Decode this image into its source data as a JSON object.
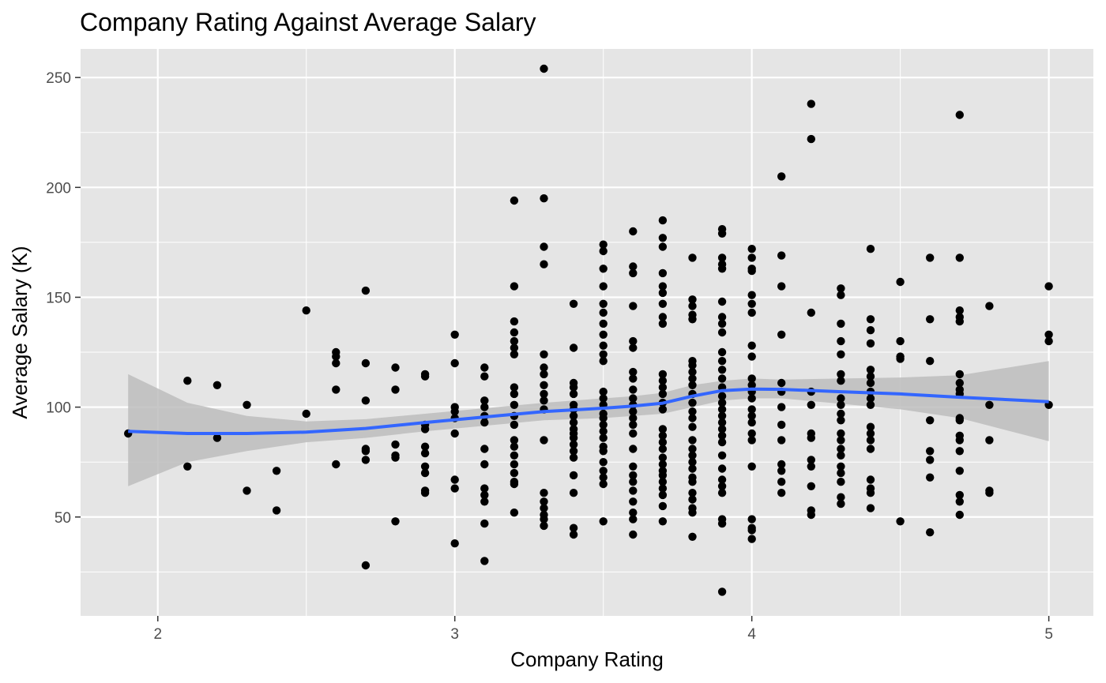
{
  "chart_data": {
    "type": "scatter",
    "title": "Company Rating Against Average Salary",
    "xlabel": "Company Rating",
    "ylabel": "Average Salary (K)",
    "xlim": [
      1.74,
      5.15
    ],
    "ylim": [
      5,
      263
    ],
    "x_ticks": [
      2,
      3,
      4,
      5
    ],
    "y_ticks": [
      50,
      100,
      150,
      200,
      250
    ],
    "grid": true,
    "legend": "none",
    "colors": {
      "panel": "#e5e5e5",
      "grid": "#ffffff",
      "points": "#000000",
      "smooth_line": "#3366ff",
      "confidence_band": "#bdbdbd",
      "tick_text": "#4d4d4d"
    },
    "points": [
      [
        1.9,
        88
      ],
      [
        2.1,
        112
      ],
      [
        2.1,
        73
      ],
      [
        2.2,
        110
      ],
      [
        2.2,
        86
      ],
      [
        2.3,
        101
      ],
      [
        2.3,
        62
      ],
      [
        2.4,
        71
      ],
      [
        2.4,
        53
      ],
      [
        2.5,
        144
      ],
      [
        2.5,
        97
      ],
      [
        2.6,
        125
      ],
      [
        2.6,
        123
      ],
      [
        2.6,
        120
      ],
      [
        2.6,
        108
      ],
      [
        2.6,
        74
      ],
      [
        2.7,
        153
      ],
      [
        2.7,
        120
      ],
      [
        2.7,
        103
      ],
      [
        2.7,
        81
      ],
      [
        2.7,
        80
      ],
      [
        2.7,
        76
      ],
      [
        2.7,
        28
      ],
      [
        2.8,
        118
      ],
      [
        2.8,
        108
      ],
      [
        2.8,
        83
      ],
      [
        2.8,
        78
      ],
      [
        2.8,
        77
      ],
      [
        2.8,
        48
      ],
      [
        2.9,
        115
      ],
      [
        2.9,
        114
      ],
      [
        2.9,
        92
      ],
      [
        2.9,
        90
      ],
      [
        2.9,
        82
      ],
      [
        2.9,
        79
      ],
      [
        2.9,
        73
      ],
      [
        2.9,
        70
      ],
      [
        2.9,
        62
      ],
      [
        2.9,
        61
      ],
      [
        3.0,
        133
      ],
      [
        3.0,
        120
      ],
      [
        3.0,
        100
      ],
      [
        3.0,
        98
      ],
      [
        3.0,
        95
      ],
      [
        3.0,
        88
      ],
      [
        3.0,
        67
      ],
      [
        3.0,
        63
      ],
      [
        3.0,
        38
      ],
      [
        3.1,
        118
      ],
      [
        3.1,
        114
      ],
      [
        3.1,
        103
      ],
      [
        3.1,
        100
      ],
      [
        3.1,
        96
      ],
      [
        3.1,
        93
      ],
      [
        3.1,
        81
      ],
      [
        3.1,
        74
      ],
      [
        3.1,
        63
      ],
      [
        3.1,
        60
      ],
      [
        3.1,
        57
      ],
      [
        3.1,
        47
      ],
      [
        3.1,
        30
      ],
      [
        3.2,
        194
      ],
      [
        3.2,
        155
      ],
      [
        3.2,
        139
      ],
      [
        3.2,
        134
      ],
      [
        3.2,
        130
      ],
      [
        3.2,
        127
      ],
      [
        3.2,
        124
      ],
      [
        3.2,
        109
      ],
      [
        3.2,
        106
      ],
      [
        3.2,
        101
      ],
      [
        3.2,
        96
      ],
      [
        3.2,
        92
      ],
      [
        3.2,
        85
      ],
      [
        3.2,
        82
      ],
      [
        3.2,
        78
      ],
      [
        3.2,
        74
      ],
      [
        3.2,
        70
      ],
      [
        3.2,
        66
      ],
      [
        3.2,
        65
      ],
      [
        3.2,
        52
      ],
      [
        3.3,
        254
      ],
      [
        3.3,
        195
      ],
      [
        3.3,
        173
      ],
      [
        3.3,
        165
      ],
      [
        3.3,
        124
      ],
      [
        3.3,
        118
      ],
      [
        3.3,
        115
      ],
      [
        3.3,
        110
      ],
      [
        3.3,
        106
      ],
      [
        3.3,
        103
      ],
      [
        3.3,
        99
      ],
      [
        3.3,
        85
      ],
      [
        3.3,
        61
      ],
      [
        3.3,
        57
      ],
      [
        3.3,
        54
      ],
      [
        3.3,
        51
      ],
      [
        3.3,
        49
      ],
      [
        3.3,
        46
      ],
      [
        3.4,
        147
      ],
      [
        3.4,
        127
      ],
      [
        3.4,
        111
      ],
      [
        3.4,
        109
      ],
      [
        3.4,
        106
      ],
      [
        3.4,
        101
      ],
      [
        3.4,
        99
      ],
      [
        3.4,
        96
      ],
      [
        3.4,
        93
      ],
      [
        3.4,
        90
      ],
      [
        3.4,
        88
      ],
      [
        3.4,
        86
      ],
      [
        3.4,
        83
      ],
      [
        3.4,
        80
      ],
      [
        3.4,
        77
      ],
      [
        3.4,
        69
      ],
      [
        3.4,
        61
      ],
      [
        3.4,
        45
      ],
      [
        3.4,
        42
      ],
      [
        3.5,
        174
      ],
      [
        3.5,
        171
      ],
      [
        3.5,
        163
      ],
      [
        3.5,
        155
      ],
      [
        3.5,
        147
      ],
      [
        3.5,
        143
      ],
      [
        3.5,
        138
      ],
      [
        3.5,
        133
      ],
      [
        3.5,
        128
      ],
      [
        3.5,
        124
      ],
      [
        3.5,
        121
      ],
      [
        3.5,
        107
      ],
      [
        3.5,
        104
      ],
      [
        3.5,
        101
      ],
      [
        3.5,
        97
      ],
      [
        3.5,
        95
      ],
      [
        3.5,
        92
      ],
      [
        3.5,
        89
      ],
      [
        3.5,
        86
      ],
      [
        3.5,
        82
      ],
      [
        3.5,
        80
      ],
      [
        3.5,
        75
      ],
      [
        3.5,
        71
      ],
      [
        3.5,
        68
      ],
      [
        3.5,
        65
      ],
      [
        3.5,
        48
      ],
      [
        3.6,
        180
      ],
      [
        3.6,
        164
      ],
      [
        3.6,
        161
      ],
      [
        3.6,
        146
      ],
      [
        3.6,
        130
      ],
      [
        3.6,
        127
      ],
      [
        3.6,
        116
      ],
      [
        3.6,
        113
      ],
      [
        3.6,
        108
      ],
      [
        3.6,
        104
      ],
      [
        3.6,
        101
      ],
      [
        3.6,
        98
      ],
      [
        3.6,
        95
      ],
      [
        3.6,
        92
      ],
      [
        3.6,
        88
      ],
      [
        3.6,
        81
      ],
      [
        3.6,
        73
      ],
      [
        3.6,
        69
      ],
      [
        3.6,
        66
      ],
      [
        3.6,
        62
      ],
      [
        3.6,
        57
      ],
      [
        3.6,
        52
      ],
      [
        3.6,
        49
      ],
      [
        3.6,
        42
      ],
      [
        3.7,
        185
      ],
      [
        3.7,
        177
      ],
      [
        3.7,
        173
      ],
      [
        3.7,
        161
      ],
      [
        3.7,
        155
      ],
      [
        3.7,
        152
      ],
      [
        3.7,
        147
      ],
      [
        3.7,
        141
      ],
      [
        3.7,
        138
      ],
      [
        3.7,
        115
      ],
      [
        3.7,
        112
      ],
      [
        3.7,
        109
      ],
      [
        3.7,
        106
      ],
      [
        3.7,
        102
      ],
      [
        3.7,
        99
      ],
      [
        3.7,
        90
      ],
      [
        3.7,
        87
      ],
      [
        3.7,
        84
      ],
      [
        3.7,
        81
      ],
      [
        3.7,
        77
      ],
      [
        3.7,
        74
      ],
      [
        3.7,
        71
      ],
      [
        3.7,
        69
      ],
      [
        3.7,
        66
      ],
      [
        3.7,
        63
      ],
      [
        3.7,
        60
      ],
      [
        3.7,
        55
      ],
      [
        3.7,
        48
      ],
      [
        3.8,
        168
      ],
      [
        3.8,
        149
      ],
      [
        3.8,
        146
      ],
      [
        3.8,
        142
      ],
      [
        3.8,
        140
      ],
      [
        3.8,
        121
      ],
      [
        3.8,
        119
      ],
      [
        3.8,
        116
      ],
      [
        3.8,
        113
      ],
      [
        3.8,
        110
      ],
      [
        3.8,
        106
      ],
      [
        3.8,
        102
      ],
      [
        3.8,
        98
      ],
      [
        3.8,
        95
      ],
      [
        3.8,
        91
      ],
      [
        3.8,
        85
      ],
      [
        3.8,
        81
      ],
      [
        3.8,
        78
      ],
      [
        3.8,
        75
      ],
      [
        3.8,
        72
      ],
      [
        3.8,
        68
      ],
      [
        3.8,
        66
      ],
      [
        3.8,
        61
      ],
      [
        3.8,
        58
      ],
      [
        3.8,
        54
      ],
      [
        3.8,
        52
      ],
      [
        3.8,
        41
      ],
      [
        3.9,
        181
      ],
      [
        3.9,
        179
      ],
      [
        3.9,
        168
      ],
      [
        3.9,
        165
      ],
      [
        3.9,
        163
      ],
      [
        3.9,
        148
      ],
      [
        3.9,
        141
      ],
      [
        3.9,
        138
      ],
      [
        3.9,
        134
      ],
      [
        3.9,
        125
      ],
      [
        3.9,
        121
      ],
      [
        3.9,
        117
      ],
      [
        3.9,
        113
      ],
      [
        3.9,
        109
      ],
      [
        3.9,
        105
      ],
      [
        3.9,
        102
      ],
      [
        3.9,
        99
      ],
      [
        3.9,
        96
      ],
      [
        3.9,
        93
      ],
      [
        3.9,
        90
      ],
      [
        3.9,
        87
      ],
      [
        3.9,
        84
      ],
      [
        3.9,
        78
      ],
      [
        3.9,
        72
      ],
      [
        3.9,
        67
      ],
      [
        3.9,
        64
      ],
      [
        3.9,
        61
      ],
      [
        3.9,
        49
      ],
      [
        3.9,
        47
      ],
      [
        3.9,
        16
      ],
      [
        4.0,
        172
      ],
      [
        4.0,
        168
      ],
      [
        4.0,
        163
      ],
      [
        4.0,
        162
      ],
      [
        4.0,
        151
      ],
      [
        4.0,
        147
      ],
      [
        4.0,
        143
      ],
      [
        4.0,
        128
      ],
      [
        4.0,
        123
      ],
      [
        4.0,
        113
      ],
      [
        4.0,
        110
      ],
      [
        4.0,
        107
      ],
      [
        4.0,
        104
      ],
      [
        4.0,
        99
      ],
      [
        4.0,
        96
      ],
      [
        4.0,
        93
      ],
      [
        4.0,
        88
      ],
      [
        4.0,
        85
      ],
      [
        4.0,
        73
      ],
      [
        4.0,
        49
      ],
      [
        4.0,
        45
      ],
      [
        4.0,
        44
      ],
      [
        4.0,
        40
      ],
      [
        4.1,
        205
      ],
      [
        4.1,
        169
      ],
      [
        4.1,
        155
      ],
      [
        4.1,
        133
      ],
      [
        4.1,
        111
      ],
      [
        4.1,
        107
      ],
      [
        4.1,
        100
      ],
      [
        4.1,
        92
      ],
      [
        4.1,
        85
      ],
      [
        4.1,
        74
      ],
      [
        4.1,
        71
      ],
      [
        4.1,
        66
      ],
      [
        4.1,
        61
      ],
      [
        4.2,
        238
      ],
      [
        4.2,
        222
      ],
      [
        4.2,
        143
      ],
      [
        4.2,
        107
      ],
      [
        4.2,
        101
      ],
      [
        4.2,
        88
      ],
      [
        4.2,
        86
      ],
      [
        4.2,
        76
      ],
      [
        4.2,
        73
      ],
      [
        4.2,
        64
      ],
      [
        4.2,
        53
      ],
      [
        4.2,
        51
      ],
      [
        4.3,
        154
      ],
      [
        4.3,
        151
      ],
      [
        4.3,
        138
      ],
      [
        4.3,
        130
      ],
      [
        4.3,
        124
      ],
      [
        4.3,
        115
      ],
      [
        4.3,
        112
      ],
      [
        4.3,
        104
      ],
      [
        4.3,
        101
      ],
      [
        4.3,
        97
      ],
      [
        4.3,
        94
      ],
      [
        4.3,
        88
      ],
      [
        4.3,
        85
      ],
      [
        4.3,
        81
      ],
      [
        4.3,
        78
      ],
      [
        4.3,
        73
      ],
      [
        4.3,
        70
      ],
      [
        4.3,
        66
      ],
      [
        4.3,
        59
      ],
      [
        4.3,
        56
      ],
      [
        4.4,
        172
      ],
      [
        4.4,
        140
      ],
      [
        4.4,
        135
      ],
      [
        4.4,
        129
      ],
      [
        4.4,
        117
      ],
      [
        4.4,
        114
      ],
      [
        4.4,
        111
      ],
      [
        4.4,
        107
      ],
      [
        4.4,
        104
      ],
      [
        4.4,
        101
      ],
      [
        4.4,
        91
      ],
      [
        4.4,
        88
      ],
      [
        4.4,
        85
      ],
      [
        4.4,
        81
      ],
      [
        4.4,
        67
      ],
      [
        4.4,
        63
      ],
      [
        4.4,
        61
      ],
      [
        4.4,
        54
      ],
      [
        4.5,
        157
      ],
      [
        4.5,
        130
      ],
      [
        4.5,
        123
      ],
      [
        4.5,
        122
      ],
      [
        4.5,
        48
      ],
      [
        4.6,
        168
      ],
      [
        4.6,
        140
      ],
      [
        4.6,
        121
      ],
      [
        4.6,
        94
      ],
      [
        4.6,
        80
      ],
      [
        4.6,
        76
      ],
      [
        4.6,
        68
      ],
      [
        4.6,
        43
      ],
      [
        4.7,
        233
      ],
      [
        4.7,
        168
      ],
      [
        4.7,
        144
      ],
      [
        4.7,
        141
      ],
      [
        4.7,
        139
      ],
      [
        4.7,
        115
      ],
      [
        4.7,
        111
      ],
      [
        4.7,
        108
      ],
      [
        4.7,
        106
      ],
      [
        4.7,
        95
      ],
      [
        4.7,
        94
      ],
      [
        4.7,
        87
      ],
      [
        4.7,
        85
      ],
      [
        4.7,
        80
      ],
      [
        4.7,
        71
      ],
      [
        4.7,
        60
      ],
      [
        4.7,
        57
      ],
      [
        4.7,
        51
      ],
      [
        4.8,
        146
      ],
      [
        4.8,
        101
      ],
      [
        4.8,
        85
      ],
      [
        4.8,
        62
      ],
      [
        4.8,
        61
      ],
      [
        5.0,
        155
      ],
      [
        5.0,
        133
      ],
      [
        5.0,
        130
      ],
      [
        5.0,
        101
      ]
    ],
    "smooth": {
      "x": [
        1.9,
        2.1,
        2.3,
        2.5,
        2.7,
        2.9,
        3.1,
        3.3,
        3.5,
        3.6,
        3.7,
        3.8,
        3.9,
        4.0,
        4.1,
        4.3,
        4.5,
        4.7,
        5.0
      ],
      "y": [
        89,
        88,
        88,
        88.6,
        90.3,
        93,
        95.5,
        98,
        99.5,
        100.5,
        101.8,
        105,
        107.5,
        108.2,
        108.1,
        107,
        106,
        104.5,
        102.5
      ],
      "lower": [
        64,
        75,
        80,
        84,
        86,
        89,
        91.5,
        94,
        95,
        96,
        97,
        100,
        103,
        104,
        104,
        101.5,
        99,
        95,
        84.5
      ],
      "upper": [
        115,
        102,
        96,
        93.5,
        94.5,
        97,
        99.5,
        102,
        104,
        105,
        106.5,
        110,
        112,
        113,
        112.5,
        113,
        113.5,
        114.5,
        121
      ]
    }
  }
}
